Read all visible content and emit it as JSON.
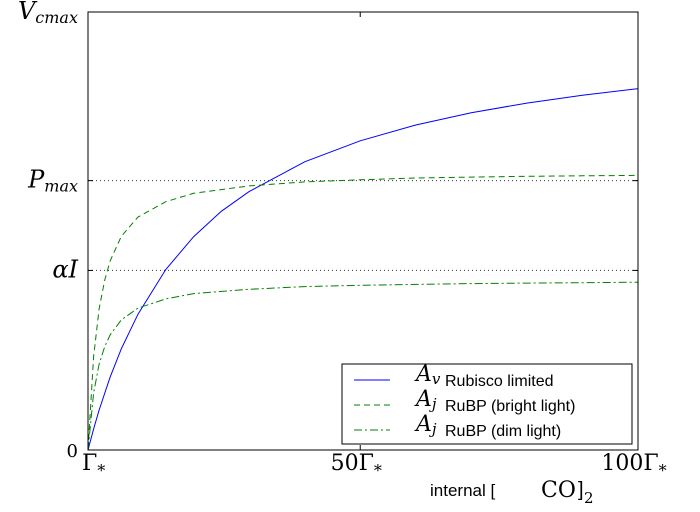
{
  "chart_data": {
    "type": "line",
    "title": "",
    "xlabel": {
      "prefix": "internal [",
      "math": "CO",
      "subscript": "2",
      "suffix": "]"
    },
    "ylabel": "",
    "xlim": [
      1,
      100
    ],
    "ylim": [
      0,
      1.0
    ],
    "grid": "horizontal dotted at y ticks",
    "x_ticks": [
      {
        "value": 1,
        "base": "Γ",
        "sub": "*"
      },
      {
        "value": 50,
        "base": "50Γ",
        "sub": "*"
      },
      {
        "value": 100,
        "base": "100Γ",
        "sub": "*"
      }
    ],
    "y_ticks": [
      {
        "value": 0,
        "label": "0",
        "math": false
      },
      {
        "value": 0.41,
        "label": "αI",
        "math": true
      },
      {
        "value": 0.615,
        "label": "P",
        "sub": "max",
        "math": true
      },
      {
        "value": 1.0,
        "label": "V",
        "sub": "cmax",
        "math": true
      }
    ],
    "legend": {
      "placement": "lower right",
      "entries": [
        {
          "symbol": "A",
          "sub": "v",
          "text": "Rubisco limited",
          "style": "solid",
          "color": "#0000ff"
        },
        {
          "symbol": "A",
          "sub": "j",
          "text": "RuBP (bright light)",
          "style": "dashed",
          "color": "#008000"
        },
        {
          "symbol": "A",
          "sub": "j",
          "text": "RuBP (dim light)",
          "style": "dashdot",
          "color": "#008000"
        }
      ]
    },
    "series": [
      {
        "key": "rubisco",
        "style": "solid",
        "color": "#0000ff",
        "x": [
          1,
          2,
          3,
          5,
          7,
          10,
          15,
          20,
          25,
          30,
          40,
          50,
          60,
          70,
          80,
          90,
          100
        ],
        "y": [
          0,
          0.048,
          0.091,
          0.167,
          0.231,
          0.31,
          0.412,
          0.487,
          0.545,
          0.59,
          0.658,
          0.706,
          0.742,
          0.77,
          0.792,
          0.81,
          0.825
        ]
      },
      {
        "key": "bright",
        "style": "dashed",
        "color": "#008000",
        "x": [
          1,
          2,
          3,
          4,
          5,
          7,
          10,
          15,
          20,
          30,
          40,
          50,
          60,
          70,
          80,
          90,
          100
        ],
        "y": [
          0,
          0.213,
          0.322,
          0.388,
          0.432,
          0.488,
          0.532,
          0.567,
          0.586,
          0.603,
          0.612,
          0.617,
          0.621,
          0.623,
          0.625,
          0.626,
          0.627
        ]
      },
      {
        "key": "dim",
        "style": "dashdot",
        "color": "#008000",
        "x": [
          1,
          2,
          3,
          4,
          5,
          7,
          10,
          15,
          20,
          30,
          40,
          50,
          60,
          70,
          80,
          90,
          100
        ],
        "y": [
          0,
          0.13,
          0.196,
          0.236,
          0.263,
          0.297,
          0.324,
          0.345,
          0.357,
          0.367,
          0.373,
          0.376,
          0.378,
          0.38,
          0.381,
          0.382,
          0.383
        ]
      }
    ]
  }
}
